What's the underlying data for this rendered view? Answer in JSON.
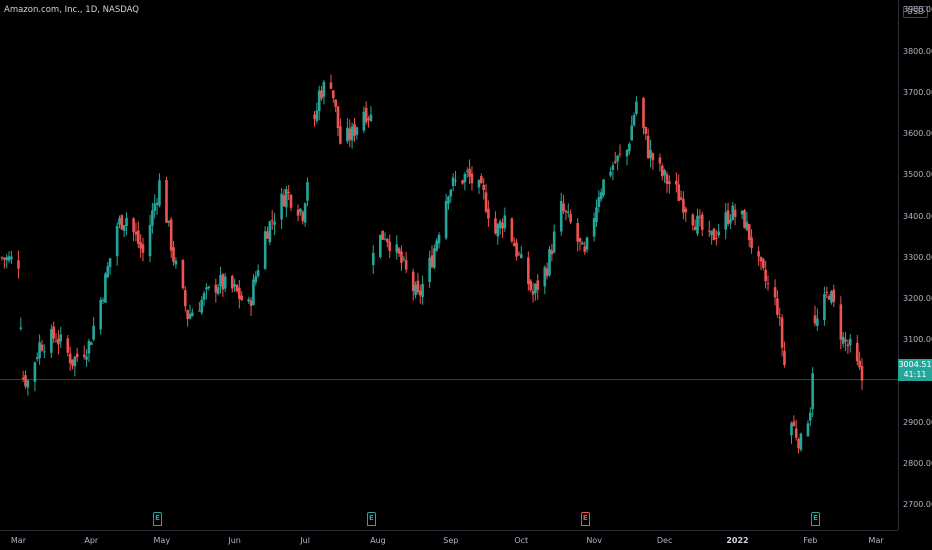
{
  "header": {
    "symbol_title": "Amazon.com, Inc., 1D, NASDAQ",
    "currency": "USD"
  },
  "colors": {
    "up": "#26a69a",
    "down": "#ef5350",
    "background": "#000000",
    "price_line": "#26a69a"
  },
  "price_scale": {
    "ticks": [
      "3900.00",
      "3800.00",
      "3700.00",
      "3600.00",
      "3500.00",
      "3400.00",
      "3300.00",
      "3200.00",
      "3100.00",
      "2900.00",
      "2800.00",
      "2700.00"
    ]
  },
  "last_price": {
    "price": "3004.51",
    "countdown": "41:11",
    "value": 3004.51
  },
  "time_scale": {
    "labels": [
      "Mar",
      "Apr",
      "May",
      "Jun",
      "Jul",
      "Aug",
      "Sep",
      "Oct",
      "Nov",
      "Dec",
      "2022",
      "Feb",
      "Mar"
    ]
  },
  "earnings": [
    {
      "label": "E",
      "result": "beat"
    },
    {
      "label": "E",
      "result": "beat"
    },
    {
      "label": "E",
      "result": "miss"
    },
    {
      "label": "E",
      "result": "beat"
    }
  ],
  "chart_data": {
    "type": "candlestick",
    "title": "Amazon.com, Inc., 1D, NASDAQ",
    "ylim": [
      2640,
      3925
    ],
    "y_ticks": [
      2700,
      2800,
      2900,
      3100,
      3200,
      3300,
      3400,
      3500,
      3600,
      3700,
      3800,
      3900
    ],
    "x_labels": [
      "Mar",
      "Apr",
      "May",
      "Jun",
      "Jul",
      "Aug",
      "Sep",
      "Oct",
      "Nov",
      "Dec",
      "2022",
      "Feb",
      "Mar"
    ],
    "grid": false,
    "price_path": [
      [
        "2021-02-22",
        3300
      ],
      [
        "2021-03-01",
        3290
      ],
      [
        "2021-03-03",
        3010
      ],
      [
        "2021-03-05",
        3000
      ],
      [
        "2021-03-10",
        3090
      ],
      [
        "2021-03-17",
        3110
      ],
      [
        "2021-03-24",
        3050
      ],
      [
        "2021-03-31",
        3090
      ],
      [
        "2021-04-06",
        3220
      ],
      [
        "2021-04-12",
        3380
      ],
      [
        "2021-04-16",
        3400
      ],
      [
        "2021-04-23",
        3310
      ],
      [
        "2021-04-30",
        3480
      ],
      [
        "2021-05-03",
        3400
      ],
      [
        "2021-05-06",
        3300
      ],
      [
        "2021-05-12",
        3160
      ],
      [
        "2021-05-17",
        3190
      ],
      [
        "2021-05-25",
        3240
      ],
      [
        "2021-06-01",
        3220
      ],
      [
        "2021-06-07",
        3180
      ],
      [
        "2021-06-14",
        3360
      ],
      [
        "2021-06-23",
        3460
      ],
      [
        "2021-06-30",
        3410
      ],
      [
        "2021-07-07",
        3700
      ],
      [
        "2021-07-12",
        3730
      ],
      [
        "2021-07-16",
        3580
      ],
      [
        "2021-07-21",
        3600
      ],
      [
        "2021-07-26",
        3660
      ],
      [
        "2021-07-29",
        3640
      ],
      [
        "2021-07-30",
        3330
      ],
      [
        "2021-08-04",
        3360
      ],
      [
        "2021-08-10",
        3300
      ],
      [
        "2021-08-18",
        3200
      ],
      [
        "2021-08-24",
        3300
      ],
      [
        "2021-08-31",
        3470
      ],
      [
        "2021-09-08",
        3500
      ],
      [
        "2021-09-15",
        3450
      ],
      [
        "2021-09-20",
        3360
      ],
      [
        "2021-09-24",
        3400
      ],
      [
        "2021-09-30",
        3300
      ],
      [
        "2021-10-06",
        3210
      ],
      [
        "2021-10-12",
        3280
      ],
      [
        "2021-10-18",
        3420
      ],
      [
        "2021-10-22",
        3380
      ],
      [
        "2021-10-28",
        3300
      ],
      [
        "2021-11-03",
        3460
      ],
      [
        "2021-11-08",
        3520
      ],
      [
        "2021-11-15",
        3560
      ],
      [
        "2021-11-19",
        3680
      ],
      [
        "2021-11-24",
        3560
      ],
      [
        "2021-11-30",
        3500
      ],
      [
        "2021-12-06",
        3460
      ],
      [
        "2021-12-13",
        3400
      ],
      [
        "2021-12-20",
        3340
      ],
      [
        "2021-12-29",
        3410
      ],
      [
        "2022-01-04",
        3390
      ],
      [
        "2022-01-10",
        3280
      ],
      [
        "2022-01-18",
        3180
      ],
      [
        "2022-01-24",
        2900
      ],
      [
        "2022-01-28",
        2850
      ],
      [
        "2022-02-01",
        2940
      ],
      [
        "2022-02-03",
        3130
      ],
      [
        "2022-02-09",
        3220
      ],
      [
        "2022-02-15",
        3100
      ],
      [
        "2022-02-18",
        3080
      ],
      [
        "2022-02-23",
        3004.51
      ]
    ],
    "price_line": 3004.51
  }
}
